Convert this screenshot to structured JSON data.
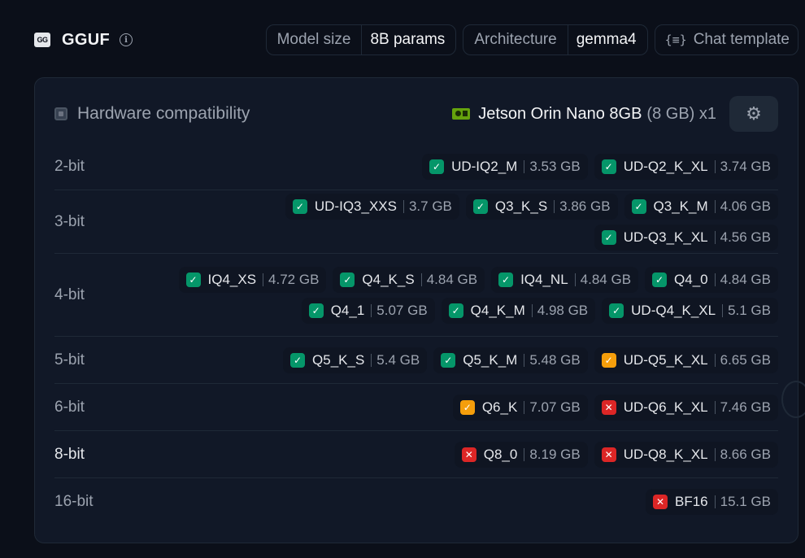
{
  "header": {
    "logo_icon": "gguf-logo-icon",
    "logo_text": "GG",
    "title": "GGUF",
    "info_icon": "info-icon",
    "model_size_key": "Model size",
    "model_size_val": "8B params",
    "arch_key": "Architecture",
    "arch_val": "gemma4",
    "chat_icon": "braces-icon",
    "chat_label": "Chat template"
  },
  "hardware": {
    "title": "Hardware compatibility",
    "device": "Jetson Orin Nano 8GB",
    "memory": "(8 GB) x1",
    "gear_icon": "gear-icon"
  },
  "status_colors": {
    "ok": "#059669",
    "warn": "#f59e0b",
    "bad": "#dc2626"
  },
  "rows": [
    {
      "label": "2-bit",
      "quants": [
        {
          "name": "UD-IQ2_M",
          "size": "3.53 GB",
          "status": "ok"
        },
        {
          "name": "UD-Q2_K_XL",
          "size": "3.74 GB",
          "status": "ok"
        }
      ]
    },
    {
      "label": "3-bit",
      "quants": [
        {
          "name": "UD-IQ3_XXS",
          "size": "3.7 GB",
          "status": "ok"
        },
        {
          "name": "Q3_K_S",
          "size": "3.86 GB",
          "status": "ok"
        },
        {
          "name": "Q3_K_M",
          "size": "4.06 GB",
          "status": "ok"
        },
        {
          "name": "UD-Q3_K_XL",
          "size": "4.56 GB",
          "status": "ok"
        }
      ]
    },
    {
      "label": "4-bit",
      "quants": [
        {
          "name": "IQ4_XS",
          "size": "4.72 GB",
          "status": "ok"
        },
        {
          "name": "Q4_K_S",
          "size": "4.84 GB",
          "status": "ok"
        },
        {
          "name": "IQ4_NL",
          "size": "4.84 GB",
          "status": "ok"
        },
        {
          "name": "Q4_0",
          "size": "4.84 GB",
          "status": "ok"
        },
        {
          "name": "Q4_1",
          "size": "5.07 GB",
          "status": "ok"
        },
        {
          "name": "Q4_K_M",
          "size": "4.98 GB",
          "status": "ok"
        },
        {
          "name": "UD-Q4_K_XL",
          "size": "5.1 GB",
          "status": "ok"
        }
      ]
    },
    {
      "label": "5-bit",
      "quants": [
        {
          "name": "Q5_K_S",
          "size": "5.4 GB",
          "status": "ok"
        },
        {
          "name": "Q5_K_M",
          "size": "5.48 GB",
          "status": "ok"
        },
        {
          "name": "UD-Q5_K_XL",
          "size": "6.65 GB",
          "status": "warn"
        }
      ]
    },
    {
      "label": "6-bit",
      "quants": [
        {
          "name": "Q6_K",
          "size": "7.07 GB",
          "status": "warn"
        },
        {
          "name": "UD-Q6_K_XL",
          "size": "7.46 GB",
          "status": "bad"
        }
      ]
    },
    {
      "label": "8-bit",
      "quants": [
        {
          "name": "Q8_0",
          "size": "8.19 GB",
          "status": "bad"
        },
        {
          "name": "UD-Q8_K_XL",
          "size": "8.66 GB",
          "status": "bad"
        }
      ]
    },
    {
      "label": "16-bit",
      "quants": [
        {
          "name": "BF16",
          "size": "15.1 GB",
          "status": "bad"
        }
      ]
    }
  ]
}
